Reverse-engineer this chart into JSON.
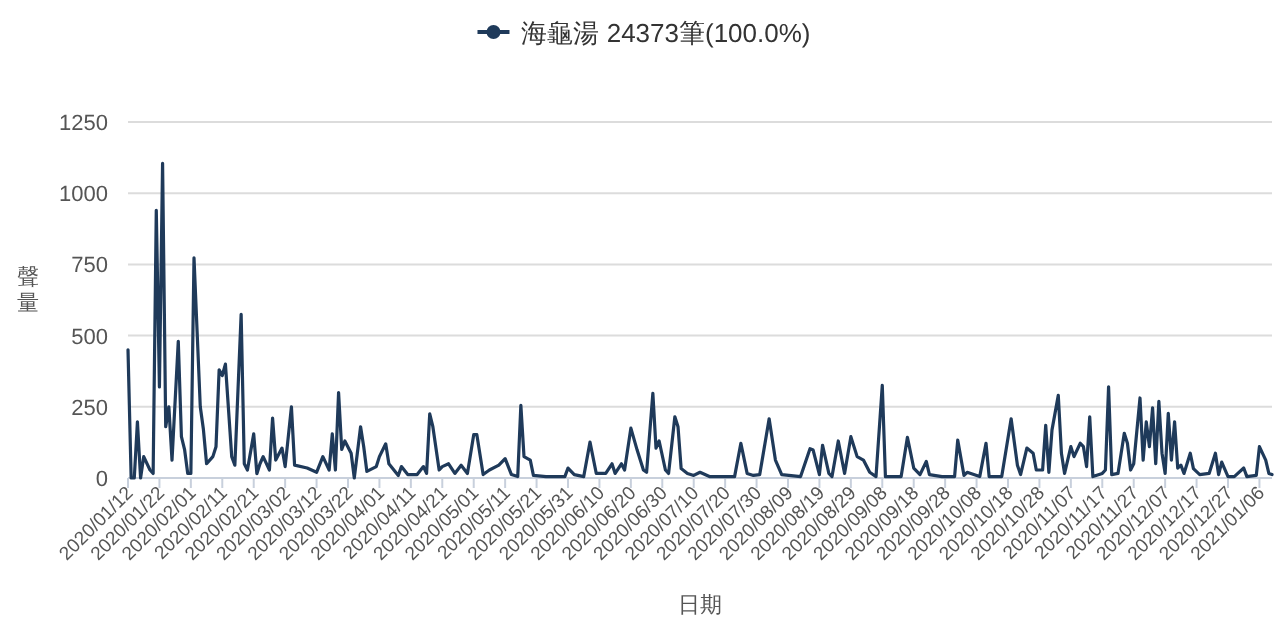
{
  "chart_data": {
    "type": "line",
    "xlabel": "日期",
    "ylabel": "聲量",
    "legend": "top",
    "grid": "y",
    "xlim": [
      "2020-01-12",
      "2021-01-10"
    ],
    "ylim": [
      0,
      1250
    ],
    "yticks": [
      0,
      250,
      500,
      750,
      1000,
      1250
    ],
    "xticks": [
      {
        "value": "2020-01-12",
        "label": "2020/01/12"
      },
      {
        "value": "2020-01-22",
        "label": "2020/01/22"
      },
      {
        "value": "2020-02-01",
        "label": "2020/02/01"
      },
      {
        "value": "2020-02-11",
        "label": "2020/02/11"
      },
      {
        "value": "2020-02-21",
        "label": "2020/02/21"
      },
      {
        "value": "2020-03-02",
        "label": "2020/03/02"
      },
      {
        "value": "2020-03-12",
        "label": "2020/03/12"
      },
      {
        "value": "2020-03-22",
        "label": "2020/03/22"
      },
      {
        "value": "2020-04-01",
        "label": "2020/04/01"
      },
      {
        "value": "2020-04-11",
        "label": "2020/04/11"
      },
      {
        "value": "2020-04-21",
        "label": "2020/04/21"
      },
      {
        "value": "2020-05-01",
        "label": "2020/05/01"
      },
      {
        "value": "2020-05-11",
        "label": "2020/05/11"
      },
      {
        "value": "2020-05-21",
        "label": "2020/05/21"
      },
      {
        "value": "2020-05-31",
        "label": "2020/05/31"
      },
      {
        "value": "2020-06-10",
        "label": "2020/06/10"
      },
      {
        "value": "2020-06-20",
        "label": "2020/06/20"
      },
      {
        "value": "2020-06-30",
        "label": "2020/06/30"
      },
      {
        "value": "2020-07-10",
        "label": "2020/07/10"
      },
      {
        "value": "2020-07-20",
        "label": "2020/07/20"
      },
      {
        "value": "2020-07-30",
        "label": "2020/07/30"
      },
      {
        "value": "2020-08-09",
        "label": "2020/08/09"
      },
      {
        "value": "2020-08-19",
        "label": "2020/08/19"
      },
      {
        "value": "2020-08-29",
        "label": "2020/08/29"
      },
      {
        "value": "2020-09-08",
        "label": "2020/09/08"
      },
      {
        "value": "2020-09-18",
        "label": "2020/09/18"
      },
      {
        "value": "2020-09-28",
        "label": "2020/09/28"
      },
      {
        "value": "2020-10-08",
        "label": "2020/10/08"
      },
      {
        "value": "2020-10-18",
        "label": "2020/10/18"
      },
      {
        "value": "2020-10-28",
        "label": "2020/10/28"
      },
      {
        "value": "2020-11-07",
        "label": "2020/11/07"
      },
      {
        "value": "2020-11-17",
        "label": "2020/11/17"
      },
      {
        "value": "2020-11-27",
        "label": "2020/11/27"
      },
      {
        "value": "2020-12-07",
        "label": "2020/12/07"
      },
      {
        "value": "2020-12-17",
        "label": "2020/12/17"
      },
      {
        "value": "2020-12-27",
        "label": "2020/12/27"
      },
      {
        "value": "2021-01-06",
        "label": "2021/01/06"
      }
    ],
    "series": [
      {
        "name": "海龜湯 24373筆(100.0%)",
        "color": "#1f3a5a",
        "x": [
          "2020-01-12",
          "2020-01-13",
          "2020-01-14",
          "2020-01-15",
          "2020-01-16",
          "2020-01-17",
          "2020-01-19",
          "2020-01-20",
          "2020-01-21",
          "2020-01-22",
          "2020-01-23",
          "2020-01-24",
          "2020-01-25",
          "2020-01-26",
          "2020-01-28",
          "2020-01-29",
          "2020-01-30",
          "2020-01-31",
          "2020-02-01",
          "2020-02-02",
          "2020-02-04",
          "2020-02-05",
          "2020-02-06",
          "2020-02-08",
          "2020-02-09",
          "2020-02-10",
          "2020-02-11",
          "2020-02-12",
          "2020-02-14",
          "2020-02-15",
          "2020-02-17",
          "2020-02-18",
          "2020-02-19",
          "2020-02-21",
          "2020-02-22",
          "2020-02-23",
          "2020-02-24",
          "2020-02-26",
          "2020-02-27",
          "2020-02-28",
          "2020-03-01",
          "2020-03-02",
          "2020-03-04",
          "2020-03-05",
          "2020-03-09",
          "2020-03-12",
          "2020-03-14",
          "2020-03-16",
          "2020-03-17",
          "2020-03-18",
          "2020-03-19",
          "2020-03-20",
          "2020-03-21",
          "2020-03-23",
          "2020-03-24",
          "2020-03-26",
          "2020-03-27",
          "2020-03-28",
          "2020-03-31",
          "2020-04-01",
          "2020-04-03",
          "2020-04-04",
          "2020-04-07",
          "2020-04-08",
          "2020-04-10",
          "2020-04-13",
          "2020-04-15",
          "2020-04-16",
          "2020-04-17",
          "2020-04-18",
          "2020-04-20",
          "2020-04-21",
          "2020-04-23",
          "2020-04-25",
          "2020-04-27",
          "2020-04-29",
          "2020-05-01",
          "2020-05-02",
          "2020-05-04",
          "2020-05-06",
          "2020-05-09",
          "2020-05-11",
          "2020-05-13",
          "2020-05-15",
          "2020-05-16",
          "2020-05-17",
          "2020-05-19",
          "2020-05-20",
          "2020-05-24",
          "2020-05-30",
          "2020-05-31",
          "2020-06-02",
          "2020-06-05",
          "2020-06-07",
          "2020-06-09",
          "2020-06-12",
          "2020-06-14",
          "2020-06-15",
          "2020-06-17",
          "2020-06-18",
          "2020-06-20",
          "2020-06-22",
          "2020-06-24",
          "2020-06-25",
          "2020-06-27",
          "2020-06-28",
          "2020-06-29",
          "2020-07-01",
          "2020-07-02",
          "2020-07-04",
          "2020-07-05",
          "2020-07-06",
          "2020-07-08",
          "2020-07-10",
          "2020-07-12",
          "2020-07-15",
          "2020-07-19",
          "2020-07-23",
          "2020-07-25",
          "2020-07-27",
          "2020-07-29",
          "2020-07-31",
          "2020-08-03",
          "2020-08-05",
          "2020-08-07",
          "2020-08-13",
          "2020-08-16",
          "2020-08-17",
          "2020-08-19",
          "2020-08-20",
          "2020-08-22",
          "2020-08-23",
          "2020-08-25",
          "2020-08-27",
          "2020-08-29",
          "2020-08-31",
          "2020-09-02",
          "2020-09-04",
          "2020-09-06",
          "2020-09-08",
          "2020-09-09",
          "2020-09-14",
          "2020-09-16",
          "2020-09-18",
          "2020-09-20",
          "2020-09-22",
          "2020-09-23",
          "2020-09-27",
          "2020-10-01",
          "2020-10-02",
          "2020-10-04",
          "2020-10-05",
          "2020-10-09",
          "2020-10-11",
          "2020-10-12",
          "2020-10-16",
          "2020-10-19",
          "2020-10-21",
          "2020-10-22",
          "2020-10-24",
          "2020-10-26",
          "2020-10-27",
          "2020-10-29",
          "2020-10-30",
          "2020-10-31",
          "2020-11-01",
          "2020-11-03",
          "2020-11-04",
          "2020-11-05",
          "2020-11-07",
          "2020-11-08",
          "2020-11-10",
          "2020-11-11",
          "2020-11-12",
          "2020-11-13",
          "2020-11-14",
          "2020-11-17",
          "2020-11-18",
          "2020-11-19",
          "2020-11-20",
          "2020-11-22",
          "2020-11-24",
          "2020-11-25",
          "2020-11-26",
          "2020-11-27",
          "2020-11-29",
          "2020-11-30",
          "2020-12-01",
          "2020-12-02",
          "2020-12-03",
          "2020-12-04",
          "2020-12-05",
          "2020-12-06",
          "2020-12-07",
          "2020-12-08",
          "2020-12-09",
          "2020-12-10",
          "2020-12-11",
          "2020-12-12",
          "2020-12-13",
          "2020-12-15",
          "2020-12-16",
          "2020-12-18",
          "2020-12-21",
          "2020-12-23",
          "2020-12-24",
          "2020-12-25",
          "2020-12-27",
          "2020-12-29",
          "2021-01-01",
          "2021-01-02",
          "2021-01-05",
          "2021-01-06",
          "2021-01-08",
          "2021-01-09",
          "2021-01-10"
        ],
        "values": [
          450,
          0,
          0,
          197,
          0,
          75,
          28,
          16,
          940,
          320,
          1105,
          180,
          250,
          63,
          480,
          145,
          100,
          16,
          16,
          773,
          250,
          170,
          50,
          75,
          110,
          380,
          360,
          400,
          75,
          45,
          575,
          50,
          28,
          155,
          15,
          50,
          75,
          28,
          210,
          63,
          105,
          40,
          250,
          45,
          35,
          20,
          75,
          28,
          155,
          28,
          300,
          100,
          130,
          87,
          0,
          180,
          110,
          23,
          40,
          75,
          120,
          50,
          9,
          40,
          12,
          12,
          40,
          16,
          225,
          180,
          28,
          40,
          50,
          16,
          45,
          16,
          152,
          152,
          12,
          28,
          45,
          68,
          12,
          5,
          255,
          75,
          63,
          9,
          5,
          5,
          35,
          12,
          5,
          126,
          16,
          16,
          50,
          16,
          50,
          28,
          175,
          98,
          28,
          20,
          297,
          105,
          130,
          28,
          16,
          215,
          180,
          33,
          16,
          9,
          20,
          5,
          5,
          5,
          122,
          16,
          9,
          12,
          208,
          63,
          12,
          5,
          103,
          98,
          12,
          115,
          16,
          5,
          130,
          16,
          145,
          75,
          63,
          20,
          5,
          325,
          5,
          5,
          143,
          35,
          12,
          58,
          12,
          5,
          5,
          133,
          9,
          20,
          5,
          122,
          5,
          5,
          208,
          45,
          12,
          105,
          87,
          28,
          28,
          185,
          20,
          169,
          290,
          87,
          16,
          110,
          75,
          122,
          110,
          40,
          215,
          5,
          16,
          28,
          320,
          12,
          16,
          157,
          122,
          28,
          50,
          281,
          63,
          197,
          110,
          246,
          50,
          269,
          87,
          16,
          227,
          63,
          197,
          35,
          45,
          16,
          87,
          33,
          12,
          16,
          87,
          12,
          56,
          5,
          5,
          35,
          5,
          9,
          110,
          63,
          16,
          12
        ]
      }
    ]
  }
}
